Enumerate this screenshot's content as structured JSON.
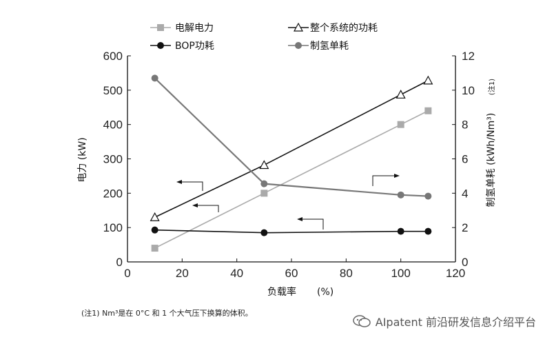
{
  "chart_data": {
    "type": "line",
    "xlabel": "负载率",
    "xunit": "(%)",
    "ylabel_left": "电力 (kW)",
    "ylabel_right": "制氢单耗 (kWh/Nm³)",
    "ylabel_right_note": "(注1)",
    "xlim": [
      0,
      120
    ],
    "ylim_left": [
      0,
      600
    ],
    "ylim_right": [
      0,
      12
    ],
    "x_ticks": [
      "0",
      "20",
      "40",
      "60",
      "80",
      "100",
      "120"
    ],
    "y_left_ticks": [
      "0",
      "100",
      "200",
      "300",
      "400",
      "500",
      "600"
    ],
    "y_right_ticks": [
      "0",
      "2",
      "4",
      "6",
      "8",
      "10",
      "12"
    ],
    "grid": false,
    "series": [
      {
        "name": "电解电力",
        "axis": "left",
        "marker": "square",
        "color": "#aaaaaa",
        "x": [
          10,
          50,
          100,
          110
        ],
        "y": [
          40,
          200,
          400,
          440
        ]
      },
      {
        "name": "整个系统的功耗",
        "axis": "left",
        "marker": "triangle-open",
        "color": "#111111",
        "x": [
          10,
          50,
          100,
          110
        ],
        "y": [
          130,
          282,
          487,
          528
        ]
      },
      {
        "name": "BOP功耗",
        "axis": "left",
        "marker": "circle",
        "color": "#111111",
        "x": [
          10,
          50,
          100,
          110
        ],
        "y": [
          93,
          85,
          89,
          89
        ]
      },
      {
        "name": "制氢单耗",
        "axis": "right",
        "marker": "circle",
        "color": "#777777",
        "x": [
          10,
          50,
          100,
          110
        ],
        "y": [
          10.7,
          4.55,
          3.9,
          3.83
        ]
      }
    ]
  },
  "footnote": "(注1) Nm³是在 0°C 和 1 个大气压下换算的体积。",
  "watermark": "AIpatent 前沿研发信息介绍平台"
}
